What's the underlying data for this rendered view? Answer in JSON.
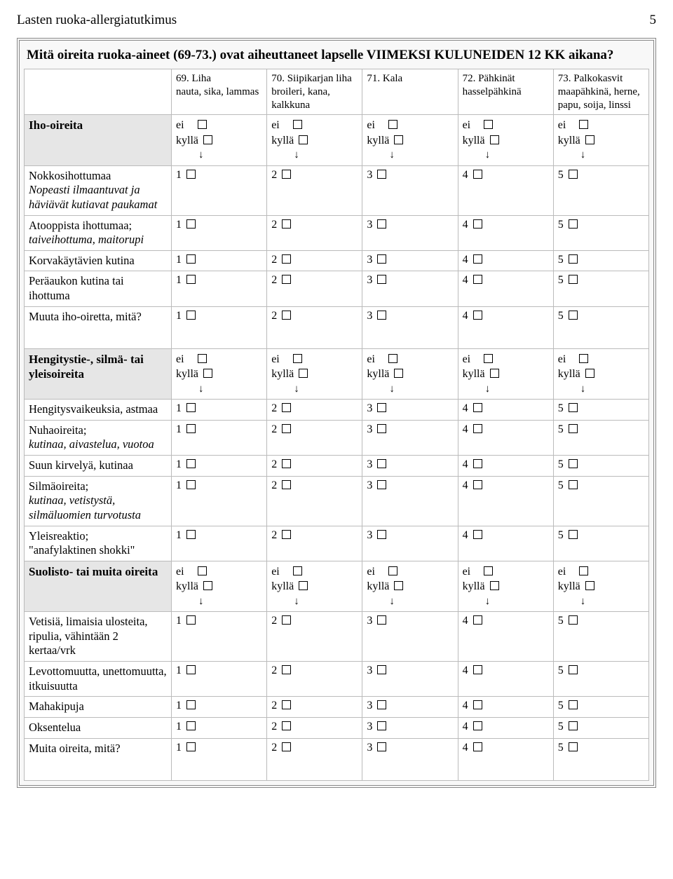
{
  "header": {
    "title": "Lasten ruoka-allergiatutkimus",
    "page": "5"
  },
  "section_title": "Mitä oireita ruoka-aineet (69-73.) ovat aiheuttaneet lapselle VIIMEKSI KULUNEIDEN 12 KK aikana?",
  "ei": "ei",
  "kylla": "kyllä",
  "arrow": "↓",
  "columns": [
    {
      "lead": "69. Liha",
      "sub": "nauta, sika, lammas"
    },
    {
      "lead": "70. Siipikarjan liha",
      "sub": "broileri, kana, kalkkuna"
    },
    {
      "lead": "71. Kala",
      "sub": ""
    },
    {
      "lead": "72. Pähkinät",
      "sub": "hasselpähkinä"
    },
    {
      "lead": "73. Palkokasvit",
      "sub": "maapähkinä, herne, papu, soija, linssi"
    }
  ],
  "groups": [
    {
      "header": "Iho-oireita",
      "rows": [
        {
          "label": "Nokkosihottumaa",
          "italic": "Nopeasti ilmaantuvat ja häviävät kutiavat paukamat"
        },
        {
          "label": "Atooppista ihottumaa;",
          "italic": "taiveihottuma, maitorupi"
        },
        {
          "label": "Korvakäytävien kutina"
        },
        {
          "label": "Peräaukon kutina tai ihottuma"
        },
        {
          "label": "Muuta iho-oiretta, mitä?",
          "tall": true
        }
      ]
    },
    {
      "header": "Hengitystie-, silmä- tai yleisoireita",
      "rows": [
        {
          "label": "Hengitysvaikeuksia, astmaa"
        },
        {
          "label": "Nuhaoireita;",
          "italic": "kutinaa, aivastelua, vuotoa"
        },
        {
          "label": "Suun kirvelyä, kutinaa"
        },
        {
          "label": "Silmäoireita;",
          "italic": "kutinaa, vetistystä, silmäluomien turvotusta"
        },
        {
          "label": "Yleisreaktio;",
          "plain2": "\"anafylaktinen shokki\""
        }
      ]
    },
    {
      "header": "Suolisto- tai muita oireita",
      "rows": [
        {
          "label": "Vetisiä, limaisia ulosteita, ripulia, vähintään 2 kertaa/vrk"
        },
        {
          "label": "Levottomuutta, unettomuutta, itkuisuutta"
        },
        {
          "label": "Mahakipuja"
        },
        {
          "label": "Oksentelua"
        },
        {
          "label": "Muita oireita, mitä?",
          "tall": true
        }
      ]
    }
  ],
  "scale": [
    "1",
    "2",
    "3",
    "4",
    "5"
  ]
}
